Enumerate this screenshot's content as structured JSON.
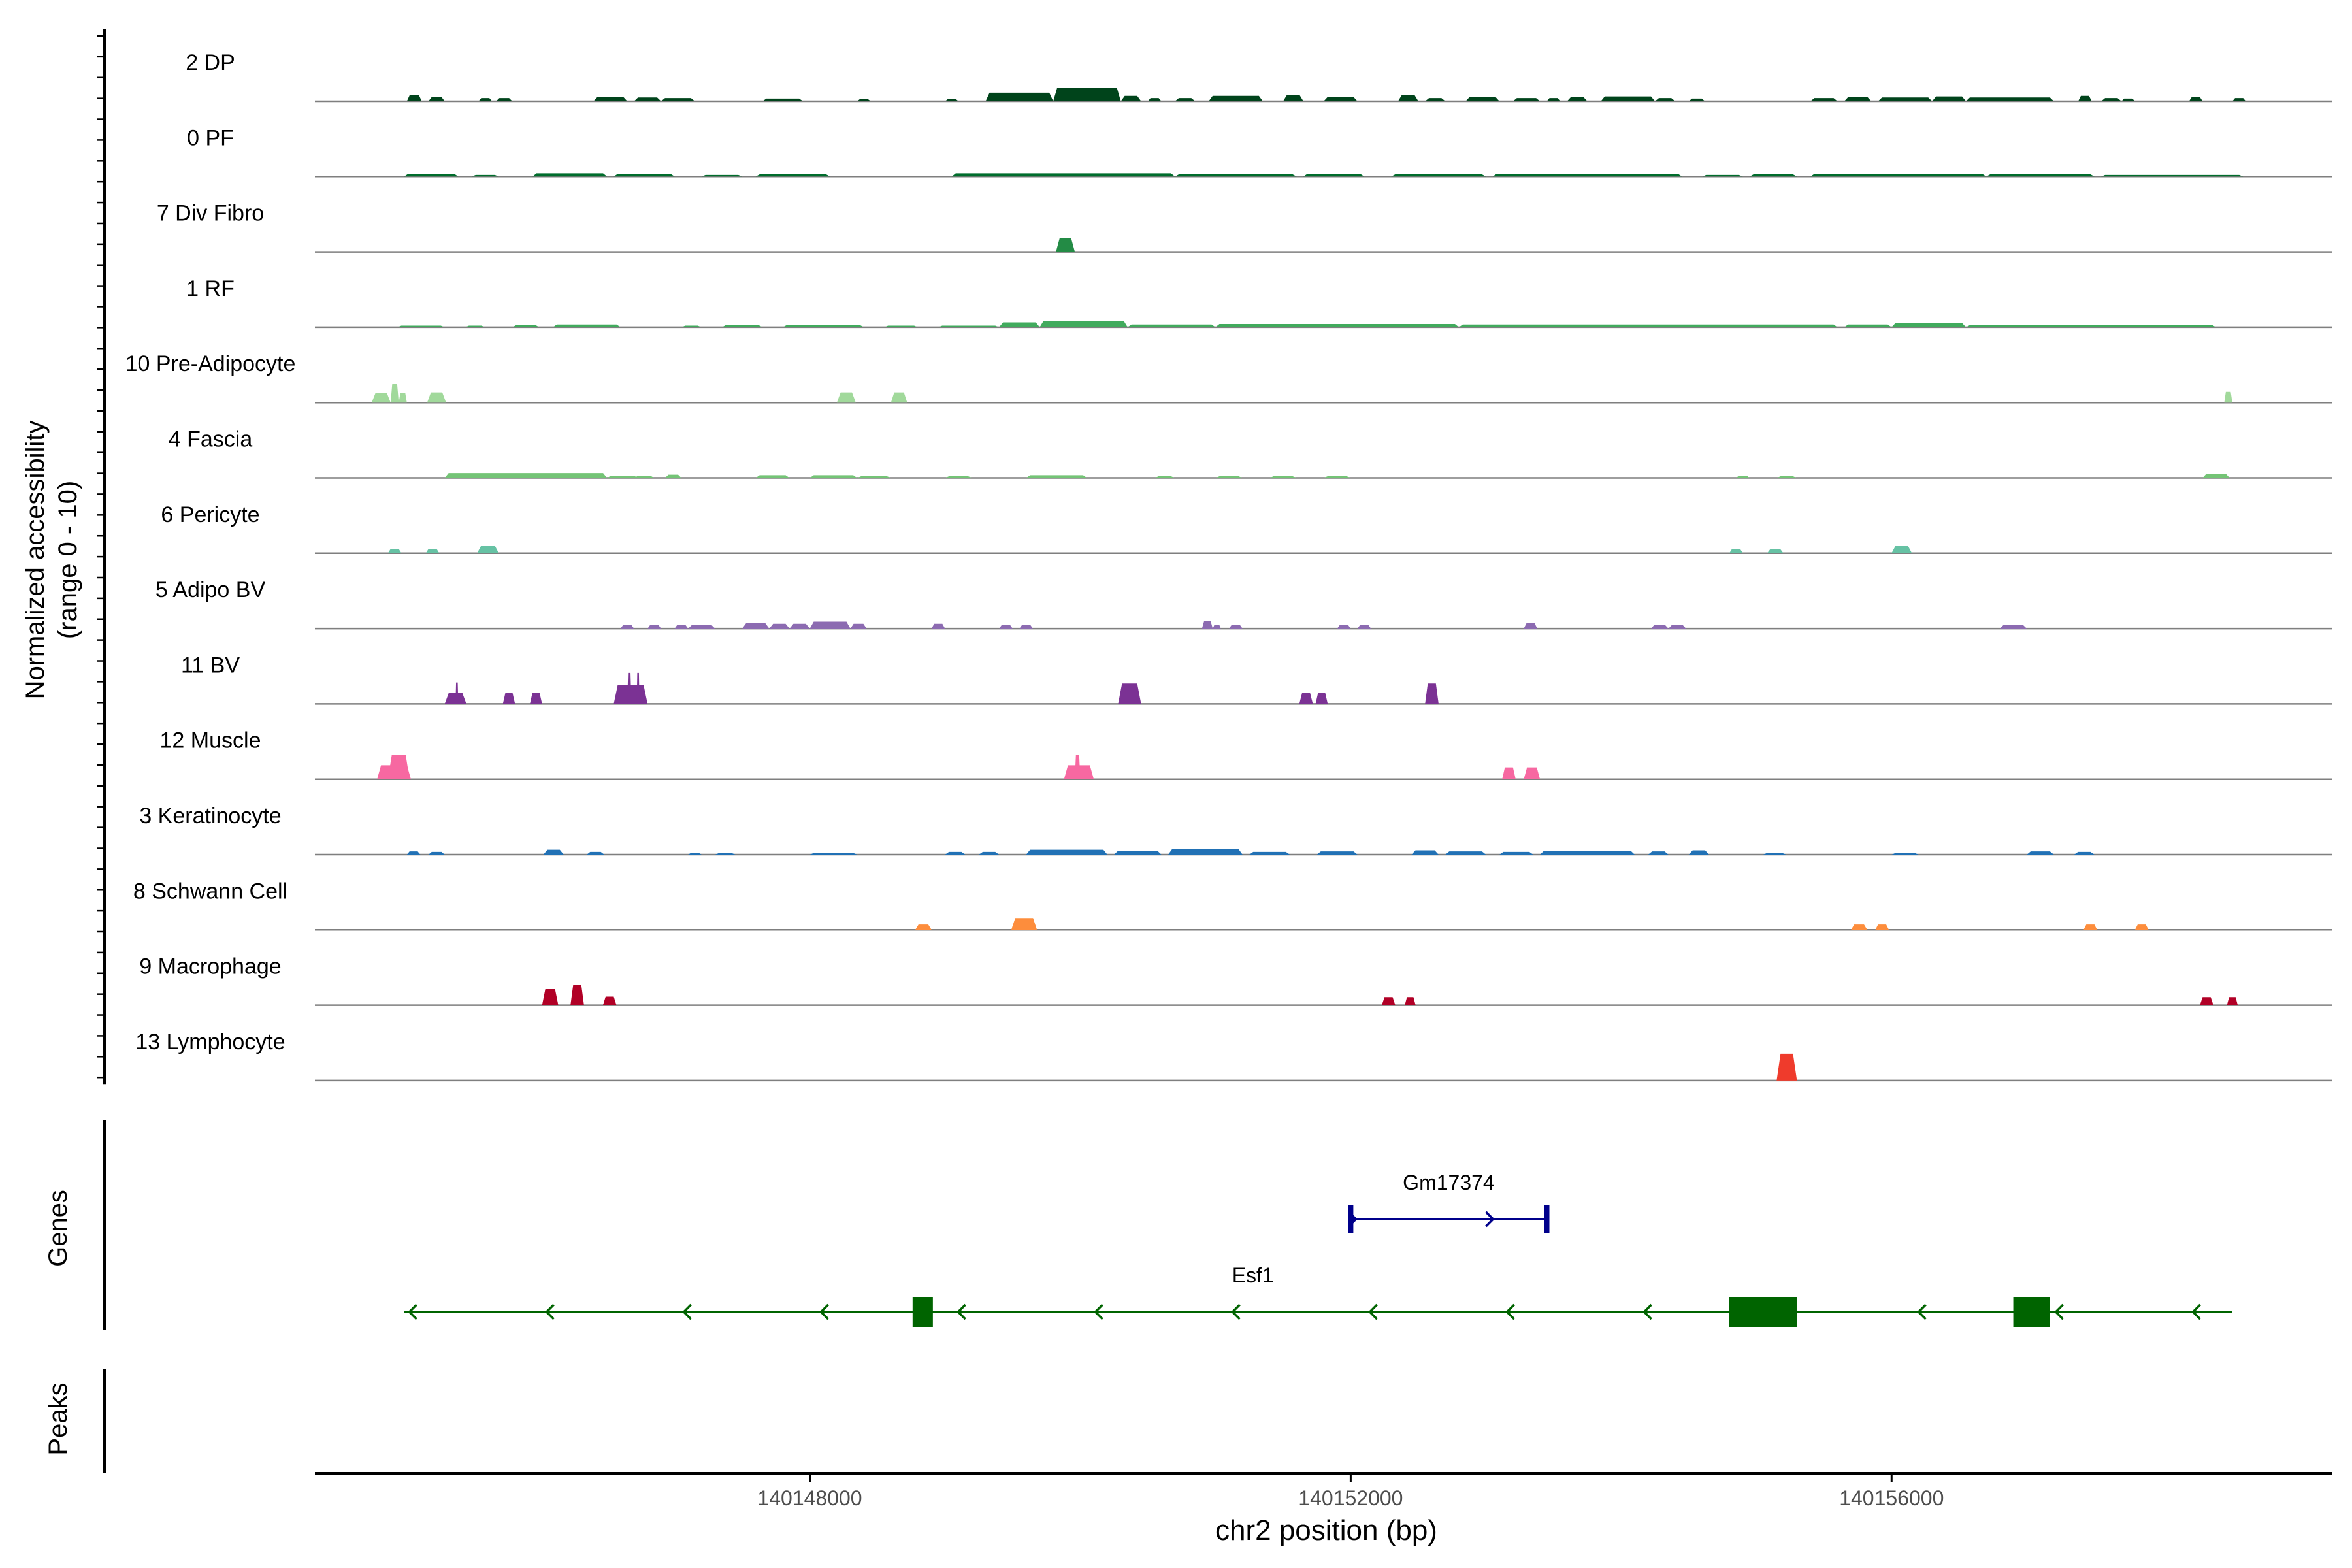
{
  "chart_data": {
    "type": "area",
    "title": "",
    "ylabel_line1": "Normalized accessibility",
    "ylabel_line2": "(range 0 - 10)",
    "xlabel": "chr2 position (bp)",
    "y_range": [
      0,
      10
    ],
    "x_range": [
      140144340,
      140159260
    ],
    "x_ticks": [
      {
        "value": 140148000,
        "label": "140148000"
      },
      {
        "value": 140152000,
        "label": "140152000"
      },
      {
        "value": 140156000,
        "label": "140156000"
      }
    ],
    "panel_labels": {
      "genes": "Genes",
      "peaks": "Peaks"
    },
    "tracks": [
      {
        "name": "2 DP",
        "color": "#00441b",
        "regions": [
          [
            140145020,
            140145130,
            1.2
          ],
          [
            140145180,
            140145300,
            0.8
          ],
          [
            140145550,
            140145650,
            0.6
          ],
          [
            140145680,
            140145800,
            0.6
          ],
          [
            140146400,
            140146650,
            0.8
          ],
          [
            140146700,
            140146900,
            0.7
          ],
          [
            140146900,
            140147150,
            0.6
          ],
          [
            140147650,
            140147950,
            0.5
          ],
          [
            140148350,
            140148450,
            0.4
          ],
          [
            140149000,
            140149100,
            0.4
          ],
          [
            140149300,
            140149800,
            1.6
          ],
          [
            140149800,
            140150300,
            2.5
          ],
          [
            140150300,
            140150450,
            1.0
          ],
          [
            140150500,
            140150600,
            0.6
          ],
          [
            140150700,
            140150850,
            0.6
          ],
          [
            140150950,
            140151350,
            1.0
          ],
          [
            140151500,
            140151650,
            1.2
          ],
          [
            140151800,
            140152050,
            0.8
          ],
          [
            140152350,
            140152500,
            1.2
          ],
          [
            140152550,
            140152700,
            0.6
          ],
          [
            140152850,
            140153100,
            0.8
          ],
          [
            140153200,
            140153400,
            0.6
          ],
          [
            140153450,
            140153550,
            0.6
          ],
          [
            140153600,
            140153750,
            0.8
          ],
          [
            140153850,
            140154250,
            0.9
          ],
          [
            140154250,
            140154400,
            0.6
          ],
          [
            140154500,
            140154620,
            0.5
          ],
          [
            140155400,
            140155600,
            0.6
          ],
          [
            140155650,
            140155850,
            0.8
          ],
          [
            140155900,
            140156300,
            0.7
          ],
          [
            140156300,
            140156550,
            0.9
          ],
          [
            140156550,
            140157200,
            0.7
          ],
          [
            140157380,
            140157480,
            1.0
          ],
          [
            140157550,
            140157700,
            0.6
          ],
          [
            140157700,
            140157800,
            0.5
          ],
          [
            140158200,
            140158300,
            0.8
          ],
          [
            140158520,
            140158620,
            0.6
          ]
        ]
      },
      {
        "name": "0 PF",
        "color": "#006d2c",
        "regions": [
          [
            140145000,
            140145400,
            0.5
          ],
          [
            140145500,
            140145700,
            0.3
          ],
          [
            140145950,
            140146500,
            0.6
          ],
          [
            140146550,
            140147000,
            0.5
          ],
          [
            140147200,
            140147500,
            0.3
          ],
          [
            140147600,
            140148150,
            0.4
          ],
          [
            140149050,
            140150700,
            0.6
          ],
          [
            140150700,
            140151600,
            0.4
          ],
          [
            140151650,
            140152100,
            0.5
          ],
          [
            140152300,
            140153000,
            0.4
          ],
          [
            140153050,
            140154450,
            0.5
          ],
          [
            140154600,
            140154900,
            0.3
          ],
          [
            140154950,
            140155300,
            0.4
          ],
          [
            140155400,
            140156700,
            0.5
          ],
          [
            140156700,
            140157500,
            0.4
          ],
          [
            140157550,
            140158600,
            0.3
          ]
        ]
      },
      {
        "name": "7 Div Fibro",
        "color": "#238b45",
        "regions": [
          [
            140149820,
            140149960,
            2.6
          ]
        ]
      },
      {
        "name": "1 RF",
        "color": "#41ab5d",
        "regions": [
          [
            140144950,
            140145300,
            0.3
          ],
          [
            140145450,
            140145600,
            0.3
          ],
          [
            140145800,
            140146000,
            0.4
          ],
          [
            140146100,
            140146600,
            0.5
          ],
          [
            140147050,
            140147200,
            0.3
          ],
          [
            140147350,
            140147650,
            0.4
          ],
          [
            140147800,
            140148400,
            0.4
          ],
          [
            140148550,
            140148800,
            0.3
          ],
          [
            140148950,
            140149400,
            0.3
          ],
          [
            140149400,
            140149700,
            0.9
          ],
          [
            140149700,
            140150350,
            1.2
          ],
          [
            140150350,
            140151000,
            0.5
          ],
          [
            140151000,
            140152800,
            0.6
          ],
          [
            140152800,
            140155600,
            0.5
          ],
          [
            140155650,
            140156000,
            0.5
          ],
          [
            140156000,
            140156550,
            0.8
          ],
          [
            140156550,
            140158400,
            0.4
          ]
        ]
      },
      {
        "name": "10 Pre-Adipocyte",
        "color": "#a1d99b",
        "regions": [
          [
            140144760,
            140144900,
            1.8
          ],
          [
            140144900,
            140144960,
            3.5
          ],
          [
            140144960,
            140145020,
            1.8
          ],
          [
            140145170,
            140145310,
            1.9
          ],
          [
            140148200,
            140148340,
            1.9
          ],
          [
            140148600,
            140148720,
            1.9
          ],
          [
            140158460,
            140158520,
            2.0
          ]
        ]
      },
      {
        "name": "4 Fascia",
        "color": "#74c476",
        "regions": [
          [
            140145300,
            140146500,
            0.9
          ],
          [
            140146500,
            140146730,
            0.4
          ],
          [
            140146700,
            140146850,
            0.4
          ],
          [
            140146930,
            140147050,
            0.6
          ],
          [
            140147600,
            140147850,
            0.5
          ],
          [
            140148000,
            140148350,
            0.5
          ],
          [
            140148350,
            140148600,
            0.3
          ],
          [
            140149000,
            140149200,
            0.3
          ],
          [
            140149600,
            140150050,
            0.5
          ],
          [
            140150550,
            140150700,
            0.3
          ],
          [
            140151000,
            140151200,
            0.3
          ],
          [
            140151400,
            140151600,
            0.3
          ],
          [
            140151800,
            140152000,
            0.3
          ],
          [
            140154850,
            140154950,
            0.4
          ],
          [
            140155150,
            140155300,
            0.3
          ],
          [
            140158300,
            140158500,
            0.8
          ]
        ]
      },
      {
        "name": "6 Pericyte",
        "color": "#66c2a4",
        "regions": [
          [
            140144880,
            140144980,
            0.8
          ],
          [
            140145160,
            140145260,
            0.8
          ],
          [
            140145540,
            140145700,
            1.4
          ],
          [
            140154800,
            140154900,
            0.8
          ],
          [
            140155080,
            140155200,
            0.8
          ],
          [
            140156000,
            140156150,
            1.4
          ]
        ]
      },
      {
        "name": "5 Adipo BV",
        "color": "#8c6bb1",
        "regions": [
          [
            140146600,
            140146700,
            0.7
          ],
          [
            140146800,
            140146900,
            0.7
          ],
          [
            140147000,
            140147100,
            0.7
          ],
          [
            140147100,
            140147300,
            0.7
          ],
          [
            140147500,
            140147700,
            1.0
          ],
          [
            140147700,
            140147850,
            0.9
          ],
          [
            140147850,
            140148000,
            0.9
          ],
          [
            140148000,
            140148300,
            1.3
          ],
          [
            140148300,
            140148420,
            0.9
          ],
          [
            140148900,
            140149000,
            0.9
          ],
          [
            140149400,
            140149500,
            0.7
          ],
          [
            140149550,
            140149650,
            0.7
          ],
          [
            140150900,
            140150980,
            1.4
          ],
          [
            140150980,
            140151040,
            0.7
          ],
          [
            140151100,
            140151200,
            0.7
          ],
          [
            140151900,
            140152000,
            0.7
          ],
          [
            140152050,
            140152150,
            0.7
          ],
          [
            140153280,
            140153380,
            1.0
          ],
          [
            140154220,
            140154350,
            0.7
          ],
          [
            140154350,
            140154480,
            0.7
          ],
          [
            140156800,
            140157000,
            0.7
          ]
        ]
      },
      {
        "name": "11 BV",
        "color": "#7b3294",
        "regions": [
          [
            140145300,
            140145460,
            2.0
          ],
          [
            140145380,
            140145400,
            4.0
          ],
          [
            140145730,
            140145820,
            2.0
          ],
          [
            140145930,
            140146020,
            2.0
          ],
          [
            140146550,
            140146800,
            3.5
          ],
          [
            140146650,
            140146680,
            5.8
          ],
          [
            140146720,
            140146740,
            5.8
          ],
          [
            140150280,
            140150450,
            3.8
          ],
          [
            140151620,
            140151720,
            2.0
          ],
          [
            140151740,
            140151830,
            2.0
          ],
          [
            140152550,
            140152650,
            3.8
          ]
        ]
      },
      {
        "name": "12 Muscle",
        "color": "#f768a1",
        "regions": [
          [
            140144800,
            140145050,
            2.6
          ],
          [
            140144880,
            140145040,
            4.6
          ],
          [
            140149880,
            140150100,
            2.6
          ],
          [
            140149960,
            140150000,
            4.6
          ],
          [
            140153120,
            140153220,
            2.2
          ],
          [
            140153280,
            140153400,
            2.2
          ]
        ]
      },
      {
        "name": "3 Keratinocyte",
        "color": "#2171b5",
        "regions": [
          [
            140145020,
            140145120,
            0.6
          ],
          [
            140145180,
            140145300,
            0.5
          ],
          [
            140146030,
            140146180,
            0.9
          ],
          [
            140146350,
            140146480,
            0.5
          ],
          [
            140147100,
            140147200,
            0.3
          ],
          [
            140147300,
            140147450,
            0.3
          ],
          [
            140148000,
            140148350,
            0.3
          ],
          [
            140149000,
            140149150,
            0.5
          ],
          [
            140149250,
            140149400,
            0.5
          ],
          [
            140149600,
            140150200,
            0.9
          ],
          [
            140150250,
            140150600,
            0.7
          ],
          [
            140150650,
            140151200,
            1.0
          ],
          [
            140151250,
            140151550,
            0.5
          ],
          [
            140151750,
            140152050,
            0.6
          ],
          [
            140152450,
            140152650,
            0.8
          ],
          [
            140152700,
            140153000,
            0.6
          ],
          [
            140153100,
            140153350,
            0.5
          ],
          [
            140153400,
            140154100,
            0.7
          ],
          [
            140154200,
            140154350,
            0.6
          ],
          [
            140154500,
            140154650,
            0.8
          ],
          [
            140155050,
            140155220,
            0.3
          ],
          [
            140156000,
            140156200,
            0.3
          ],
          [
            140157000,
            140157200,
            0.6
          ],
          [
            140157350,
            140157500,
            0.5
          ]
        ]
      },
      {
        "name": "8 Schwann Cell",
        "color": "#fd8d3c",
        "regions": [
          [
            140148780,
            140148900,
            1.0
          ],
          [
            140149490,
            140149680,
            2.2
          ],
          [
            140155700,
            140155820,
            1.0
          ],
          [
            140155880,
            140155980,
            1.0
          ],
          [
            140157420,
            140157520,
            1.0
          ],
          [
            140157800,
            140157900,
            1.0
          ]
        ]
      },
      {
        "name": "9 Macrophage",
        "color": "#b10026",
        "regions": [
          [
            140146020,
            140146140,
            3.0
          ],
          [
            140146230,
            140146330,
            3.8
          ],
          [
            140146470,
            140146570,
            1.6
          ],
          [
            140152230,
            140152330,
            1.5
          ],
          [
            140152400,
            140152480,
            1.5
          ],
          [
            140158280,
            140158380,
            1.5
          ],
          [
            140158480,
            140158560,
            1.5
          ]
        ]
      },
      {
        "name": "13 Lymphocyte",
        "color": "#ef3b2c",
        "regions": [
          [
            140155150,
            140155300,
            5.0
          ]
        ]
      }
    ],
    "genes": [
      {
        "name": "Gm17374",
        "color": "#00008b",
        "start": 140152000,
        "end": 140153450,
        "strand": "+",
        "exons": []
      },
      {
        "name": "Esf1",
        "color": "#006400",
        "start": 140145000,
        "end": 140158520,
        "strand": "-",
        "exons": [
          [
            140148760,
            140148910
          ],
          [
            140154800,
            140155300
          ],
          [
            140156900,
            140157170
          ]
        ]
      }
    ],
    "peaks": []
  }
}
